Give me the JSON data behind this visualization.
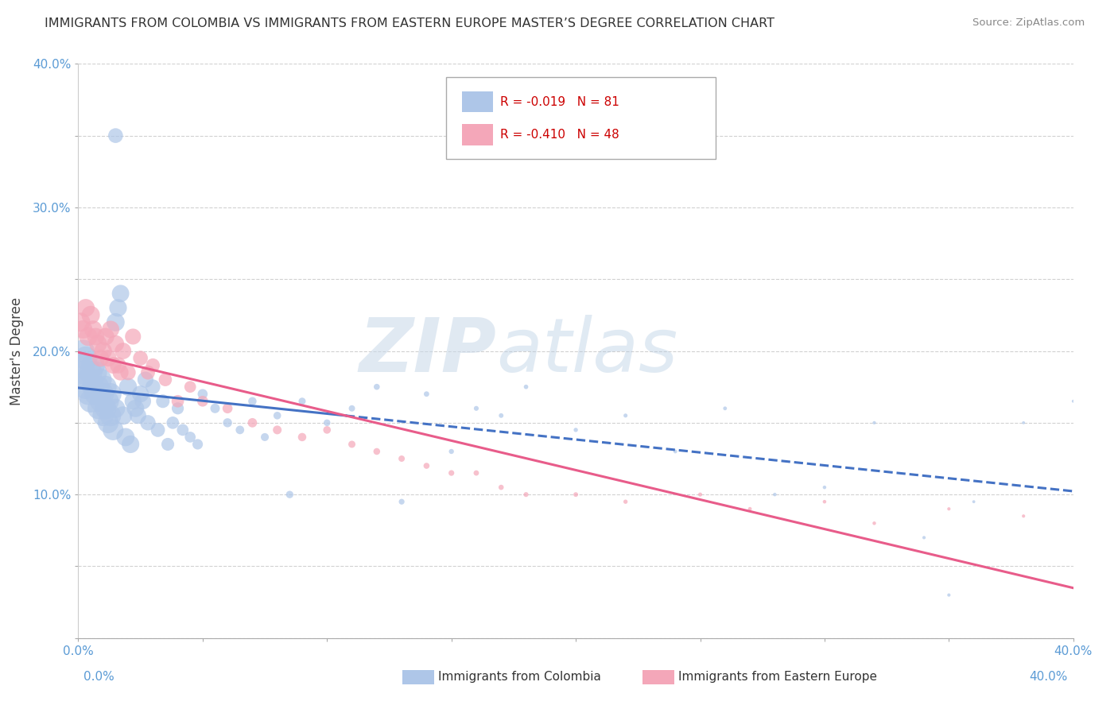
{
  "title": "IMMIGRANTS FROM COLOMBIA VS IMMIGRANTS FROM EASTERN EUROPE MASTER’S DEGREE CORRELATION CHART",
  "source": "Source: ZipAtlas.com",
  "ylabel": "Master's Degree",
  "xlim": [
    0.0,
    0.4
  ],
  "ylim": [
    0.0,
    0.4
  ],
  "xticks": [
    0.0,
    0.05,
    0.1,
    0.15,
    0.2,
    0.25,
    0.3,
    0.35,
    0.4
  ],
  "yticks": [
    0.0,
    0.05,
    0.1,
    0.15,
    0.2,
    0.25,
    0.3,
    0.35,
    0.4
  ],
  "colombia_R": -0.019,
  "colombia_N": 81,
  "eastern_europe_R": -0.41,
  "eastern_europe_N": 48,
  "colombia_color": "#aec6e8",
  "eastern_europe_color": "#f4a7b9",
  "colombia_line_color": "#4472c4",
  "eastern_europe_line_color": "#e85c8a",
  "watermark_zip": "ZIP",
  "watermark_atlas": "atlas",
  "colombia_x": [
    0.001,
    0.002,
    0.002,
    0.003,
    0.003,
    0.004,
    0.004,
    0.005,
    0.005,
    0.006,
    0.006,
    0.007,
    0.007,
    0.008,
    0.008,
    0.009,
    0.009,
    0.01,
    0.01,
    0.011,
    0.011,
    0.012,
    0.012,
    0.013,
    0.013,
    0.014,
    0.015,
    0.015,
    0.016,
    0.017,
    0.018,
    0.019,
    0.02,
    0.021,
    0.022,
    0.023,
    0.024,
    0.025,
    0.026,
    0.027,
    0.028,
    0.03,
    0.032,
    0.034,
    0.036,
    0.038,
    0.04,
    0.042,
    0.045,
    0.048,
    0.05,
    0.055,
    0.06,
    0.065,
    0.07,
    0.075,
    0.08,
    0.085,
    0.09,
    0.1,
    0.11,
    0.12,
    0.13,
    0.14,
    0.15,
    0.16,
    0.17,
    0.18,
    0.2,
    0.22,
    0.24,
    0.26,
    0.28,
    0.3,
    0.32,
    0.34,
    0.35,
    0.36,
    0.38,
    0.4,
    0.015
  ],
  "colombia_y": [
    0.19,
    0.185,
    0.2,
    0.175,
    0.195,
    0.18,
    0.17,
    0.185,
    0.165,
    0.19,
    0.175,
    0.17,
    0.185,
    0.16,
    0.175,
    0.165,
    0.18,
    0.155,
    0.17,
    0.16,
    0.175,
    0.15,
    0.165,
    0.155,
    0.17,
    0.145,
    0.22,
    0.16,
    0.23,
    0.24,
    0.155,
    0.14,
    0.175,
    0.135,
    0.165,
    0.16,
    0.155,
    0.17,
    0.165,
    0.18,
    0.15,
    0.175,
    0.145,
    0.165,
    0.135,
    0.15,
    0.16,
    0.145,
    0.14,
    0.135,
    0.17,
    0.16,
    0.15,
    0.145,
    0.165,
    0.14,
    0.155,
    0.1,
    0.165,
    0.15,
    0.16,
    0.175,
    0.095,
    0.17,
    0.13,
    0.16,
    0.155,
    0.175,
    0.145,
    0.155,
    0.13,
    0.16,
    0.1,
    0.105,
    0.15,
    0.07,
    0.03,
    0.095,
    0.15,
    0.165,
    0.35
  ],
  "colombia_sizes": [
    350,
    300,
    280,
    320,
    300,
    280,
    260,
    290,
    280,
    300,
    270,
    260,
    280,
    250,
    265,
    255,
    270,
    245,
    260,
    250,
    265,
    240,
    255,
    245,
    260,
    235,
    180,
    200,
    170,
    165,
    185,
    180,
    175,
    170,
    155,
    165,
    150,
    155,
    145,
    140,
    130,
    120,
    110,
    100,
    90,
    85,
    80,
    75,
    65,
    60,
    55,
    50,
    45,
    40,
    38,
    35,
    32,
    30,
    28,
    25,
    22,
    20,
    18,
    16,
    14,
    13,
    12,
    11,
    10,
    9,
    8,
    8,
    7,
    7,
    6,
    6,
    6,
    5,
    5,
    5,
    120
  ],
  "eastern_europe_x": [
    0.001,
    0.002,
    0.003,
    0.004,
    0.005,
    0.006,
    0.007,
    0.008,
    0.009,
    0.01,
    0.011,
    0.012,
    0.013,
    0.014,
    0.015,
    0.016,
    0.017,
    0.018,
    0.02,
    0.022,
    0.025,
    0.028,
    0.03,
    0.035,
    0.04,
    0.045,
    0.05,
    0.06,
    0.07,
    0.08,
    0.09,
    0.1,
    0.11,
    0.12,
    0.13,
    0.14,
    0.15,
    0.16,
    0.17,
    0.18,
    0.2,
    0.22,
    0.25,
    0.27,
    0.3,
    0.32,
    0.35,
    0.38
  ],
  "eastern_europe_y": [
    0.22,
    0.215,
    0.23,
    0.21,
    0.225,
    0.215,
    0.21,
    0.205,
    0.195,
    0.2,
    0.21,
    0.195,
    0.215,
    0.19,
    0.205,
    0.19,
    0.185,
    0.2,
    0.185,
    0.21,
    0.195,
    0.185,
    0.19,
    0.18,
    0.165,
    0.175,
    0.165,
    0.16,
    0.15,
    0.145,
    0.14,
    0.145,
    0.135,
    0.13,
    0.125,
    0.12,
    0.115,
    0.115,
    0.105,
    0.1,
    0.1,
    0.095,
    0.1,
    0.09,
    0.095,
    0.08,
    0.09,
    0.085
  ],
  "eastern_europe_sizes": [
    200,
    185,
    175,
    190,
    185,
    175,
    165,
    175,
    160,
    170,
    165,
    155,
    165,
    150,
    160,
    145,
    140,
    150,
    130,
    140,
    120,
    110,
    105,
    95,
    85,
    75,
    65,
    55,
    48,
    42,
    38,
    32,
    28,
    25,
    22,
    20,
    18,
    16,
    15,
    13,
    12,
    10,
    9,
    8,
    7,
    7,
    6,
    6
  ]
}
